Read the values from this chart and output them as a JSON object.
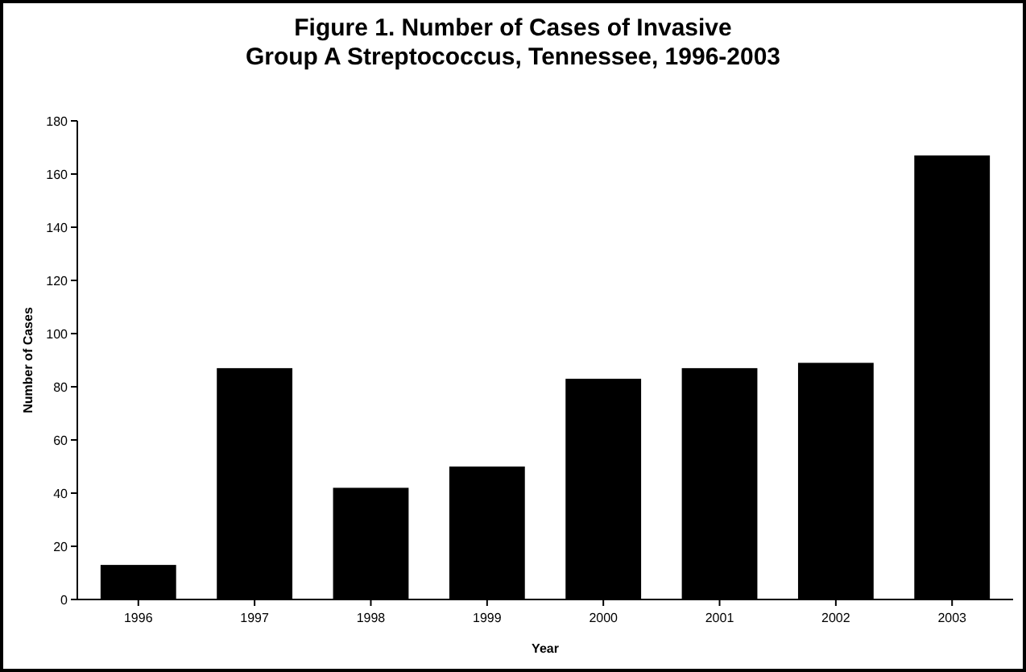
{
  "chart_data": {
    "type": "bar",
    "title": "Figure 1. Number of Cases of Invasive\nGroup A Streptococcus, Tennessee, 1996-2003",
    "xlabel": "Year",
    "ylabel": "Number of Cases",
    "categories": [
      "1996",
      "1997",
      "1998",
      "1999",
      "2000",
      "2001",
      "2002",
      "2003"
    ],
    "values": [
      13,
      87,
      42,
      50,
      83,
      87,
      89,
      167
    ],
    "color": "#000000",
    "ylim": [
      0,
      180
    ],
    "yticks": [
      0,
      20,
      40,
      60,
      80,
      100,
      120,
      140,
      160,
      180
    ],
    "grid": false
  }
}
